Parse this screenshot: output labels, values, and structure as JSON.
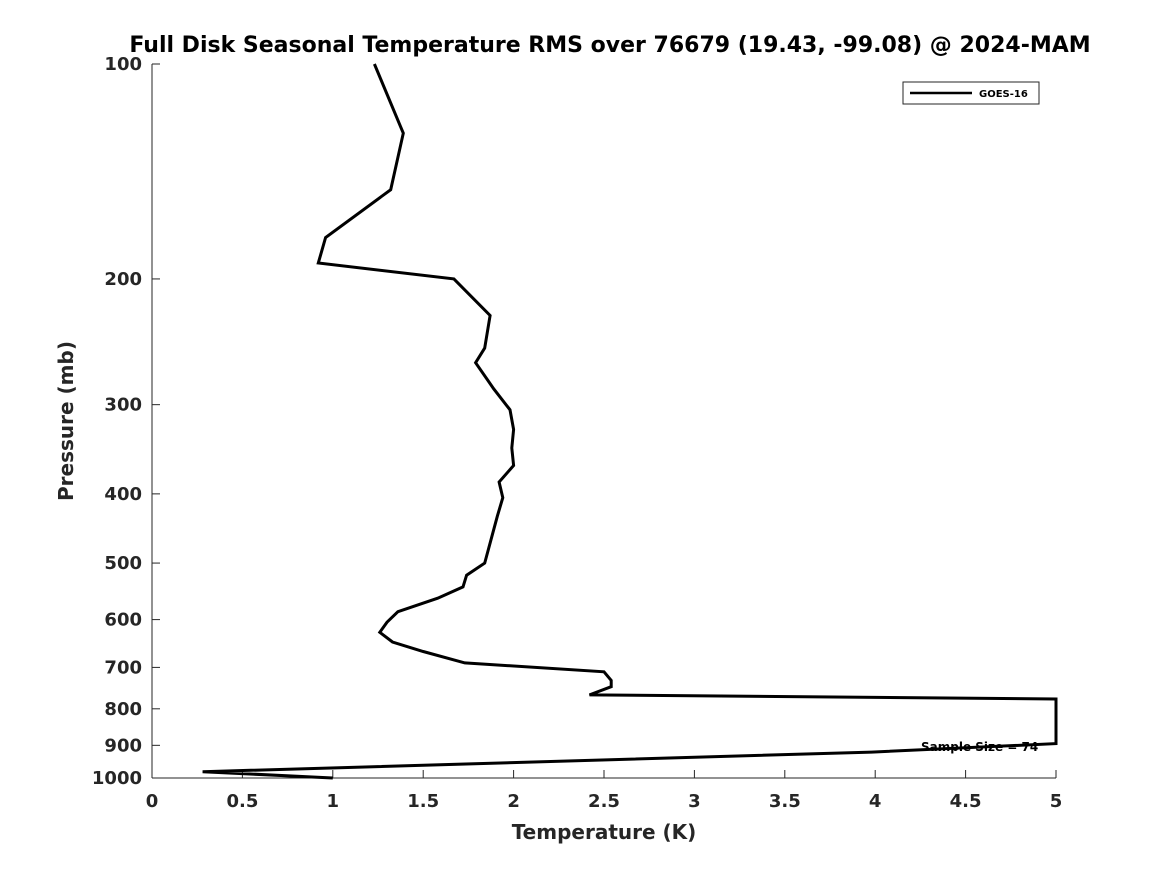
{
  "chart_data": {
    "type": "line",
    "title": "Full Disk Seasonal Temperature RMS over 76679 (19.43, -99.08) @ 2024-MAM",
    "xlabel": "Temperature (K)",
    "ylabel": "Pressure (mb)",
    "xlim": [
      0,
      5
    ],
    "ylim": [
      100,
      1000
    ],
    "yscale": "log",
    "y_reversed": true,
    "xticks": [
      "0",
      "0.5",
      "1",
      "1.5",
      "2",
      "2.5",
      "3",
      "3.5",
      "4",
      "4.5",
      "5"
    ],
    "yticks": [
      "100",
      "200",
      "300",
      "400",
      "500",
      "600",
      "700",
      "800",
      "900",
      "1000"
    ],
    "legend_position": "top-right",
    "grid": false,
    "line_color": "#000000",
    "annotation": "Sample Size = 74",
    "series": [
      {
        "name": "GOES-16",
        "points": [
          {
            "x": 1.23,
            "y": 100
          },
          {
            "x": 1.39,
            "y": 125
          },
          {
            "x": 1.32,
            "y": 150
          },
          {
            "x": 0.96,
            "y": 175
          },
          {
            "x": 0.92,
            "y": 190
          },
          {
            "x": 1.67,
            "y": 200
          },
          {
            "x": 1.87,
            "y": 225
          },
          {
            "x": 1.84,
            "y": 250
          },
          {
            "x": 1.79,
            "y": 262
          },
          {
            "x": 1.89,
            "y": 285
          },
          {
            "x": 1.98,
            "y": 305
          },
          {
            "x": 2.0,
            "y": 325
          },
          {
            "x": 1.99,
            "y": 345
          },
          {
            "x": 2.0,
            "y": 365
          },
          {
            "x": 1.92,
            "y": 385
          },
          {
            "x": 1.94,
            "y": 405
          },
          {
            "x": 1.91,
            "y": 430
          },
          {
            "x": 1.84,
            "y": 500
          },
          {
            "x": 1.74,
            "y": 520
          },
          {
            "x": 1.72,
            "y": 540
          },
          {
            "x": 1.58,
            "y": 560
          },
          {
            "x": 1.36,
            "y": 585
          },
          {
            "x": 1.3,
            "y": 605
          },
          {
            "x": 1.26,
            "y": 625
          },
          {
            "x": 1.33,
            "y": 645
          },
          {
            "x": 1.5,
            "y": 665
          },
          {
            "x": 1.73,
            "y": 690
          },
          {
            "x": 2.5,
            "y": 710
          },
          {
            "x": 2.54,
            "y": 730
          },
          {
            "x": 2.54,
            "y": 745
          },
          {
            "x": 2.42,
            "y": 765
          },
          {
            "x": 5.0,
            "y": 775
          },
          {
            "x": 5.0,
            "y": 895
          },
          {
            "x": 3.98,
            "y": 920
          },
          {
            "x": 0.28,
            "y": 980
          },
          {
            "x": 1.0,
            "y": 1000
          }
        ]
      }
    ]
  }
}
